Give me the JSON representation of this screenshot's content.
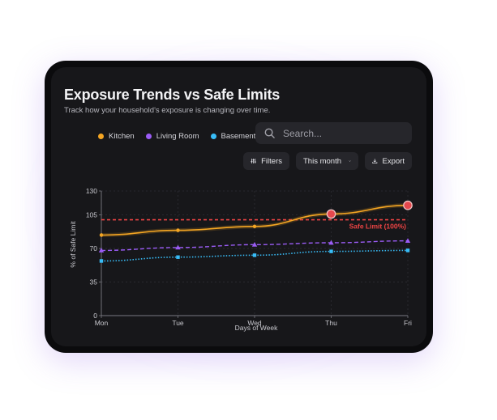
{
  "card": {
    "title": "Exposure Trends vs Safe Limits",
    "subtitle": "Track how your household's exposure is changing over time."
  },
  "search": {
    "placeholder": "Search..."
  },
  "toolbar": {
    "filters_label": "Filters",
    "period_label": "This month",
    "export_label": "Export"
  },
  "icons": {
    "search": "search-icon",
    "filters": "sliders-icon",
    "dropdown": "chevron-down-icon",
    "export": "download-icon"
  },
  "colors": {
    "kitchen": "#f5a623",
    "living_room": "#9b5cf6",
    "basement": "#38bdf8",
    "safe_limit": "#ef4444",
    "exceed_marker": "#e5484d"
  },
  "chart_data": {
    "type": "line",
    "title": "Exposure Trends vs Safe Limits",
    "xlabel": "Days of Week",
    "ylabel": "% of Safe Limit",
    "categories": [
      "Mon",
      "Tue",
      "Wed",
      "Thu",
      "Fri"
    ],
    "yticks": [
      0,
      35,
      70,
      105,
      130
    ],
    "ylim": [
      0,
      130
    ],
    "grid": true,
    "legend_position": "top",
    "series": [
      {
        "name": "Kitchen",
        "values": [
          84,
          89,
          93,
          106,
          115
        ],
        "style": "solid",
        "marker": "circle"
      },
      {
        "name": "Living Room",
        "values": [
          68,
          71,
          74,
          76,
          78
        ],
        "style": "dashed",
        "marker": "triangle"
      },
      {
        "name": "Basement",
        "values": [
          57,
          61,
          63,
          67,
          68
        ],
        "style": "dotted",
        "marker": "square"
      }
    ],
    "reference_line": {
      "label": "Safe Limit (100%)",
      "value": 100
    },
    "exceedances": [
      {
        "series": "Kitchen",
        "category": "Thu",
        "value": 106
      },
      {
        "series": "Kitchen",
        "category": "Fri",
        "value": 115
      }
    ]
  }
}
